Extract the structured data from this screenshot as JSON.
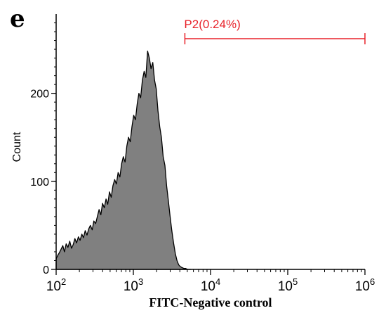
{
  "panel_letter": "e",
  "chart_data": {
    "type": "area",
    "xlabel": "FITC-Negative control",
    "ylabel": "Count",
    "xscale": "log",
    "xlim": [
      100,
      1000000
    ],
    "ylim": [
      0,
      290
    ],
    "x_ticks": [
      {
        "base": "10",
        "exp": "2",
        "value": 100
      },
      {
        "base": "10",
        "exp": "3",
        "value": 1000
      },
      {
        "base": "10",
        "exp": "4",
        "value": 10000
      },
      {
        "base": "10",
        "exp": "5",
        "value": 100000
      },
      {
        "base": "10",
        "exp": "6",
        "value": 1000000
      }
    ],
    "y_ticks": [
      {
        "label": "0",
        "value": 0
      },
      {
        "label": "100",
        "value": 100
      },
      {
        "label": "200",
        "value": 200
      }
    ],
    "series": [
      {
        "fill": "#808080",
        "stroke": "#000000",
        "x": [
          100,
          105,
          110,
          116,
          122,
          128,
          135,
          142,
          150,
          158,
          166,
          175,
          184,
          194,
          204,
          215,
          226,
          238,
          251,
          264,
          278,
          293,
          308,
          325,
          342,
          360,
          379,
          399,
          420,
          443,
          466,
          491,
          517,
          544,
          573,
          603,
          635,
          669,
          705,
          742,
          781,
          823,
          866,
          912,
          960,
          1011,
          1065,
          1121,
          1181,
          1243,
          1309,
          1379,
          1452,
          1529,
          1610,
          1695,
          1785,
          1880,
          1979,
          2084,
          2195,
          2311,
          2434,
          2563,
          2699,
          2842,
          2993,
          3152,
          3319,
          3495,
          3680,
          3875,
          4081,
          4297,
          4525,
          4765,
          5018,
          5284,
          5564
        ],
        "y": [
          12,
          16,
          19,
          23,
          27,
          20,
          29,
          25,
          32,
          24,
          28,
          35,
          30,
          37,
          33,
          40,
          36,
          44,
          39,
          46,
          50,
          45,
          55,
          52,
          60,
          68,
          62,
          75,
          70,
          80,
          74,
          88,
          82,
          95,
          102,
          97,
          110,
          105,
          120,
          128,
          122,
          140,
          150,
          145,
          162,
          175,
          170,
          188,
          200,
          195,
          215,
          225,
          218,
          248,
          240,
          228,
          235,
          215,
          205,
          180,
          162,
          150,
          128,
          118,
          95,
          78,
          60,
          44,
          30,
          18,
          10,
          5,
          3,
          2,
          1,
          1,
          0,
          0,
          0
        ]
      }
    ],
    "gate": {
      "label": "P2(0.24%)",
      "x_start": 4650,
      "x_end": 1000000,
      "y": 262,
      "color": "#e8222a"
    },
    "grid": false,
    "legend": "none"
  }
}
